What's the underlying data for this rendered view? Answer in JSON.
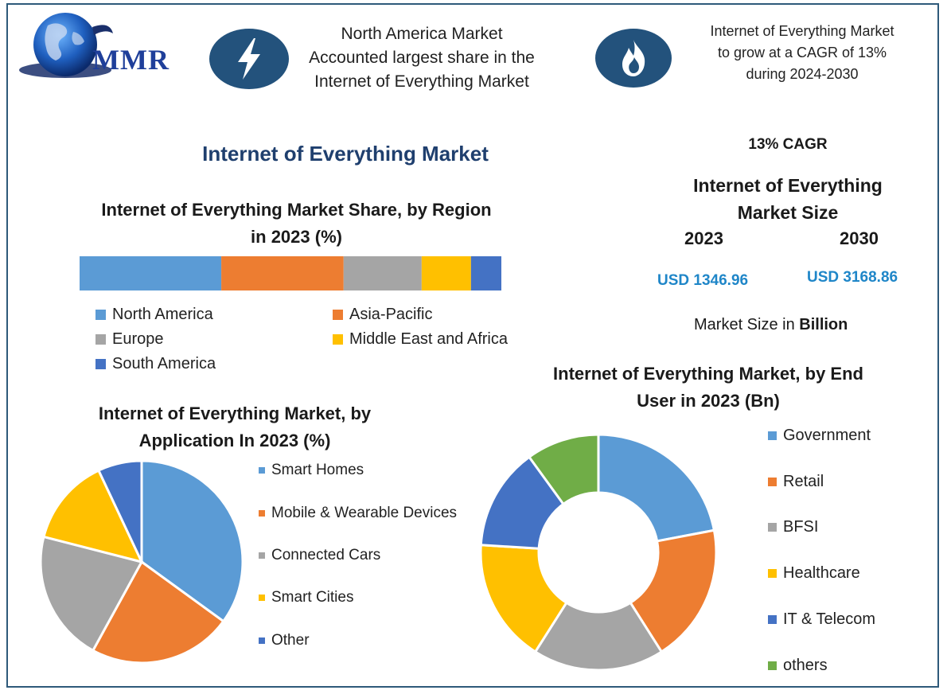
{
  "logo": {
    "text": "MMR"
  },
  "header": {
    "callout1": [
      "North America Market",
      "Accounted largest share in the",
      "Internet of Everything Market"
    ],
    "callout2": [
      "Internet of Everything Market",
      "to grow at a CAGR of 13%",
      "during 2024-2030"
    ],
    "icon1": "lightning-icon",
    "icon2": "flame-icon"
  },
  "main_title": "Internet of Everything Market",
  "cagr_label": "13% CAGR",
  "size_title": [
    "Internet of Everything",
    "Market Size"
  ],
  "year_start": "2023",
  "year_end": "2030",
  "value_start": "USD 1346.96",
  "value_end": "USD 3168.86",
  "size_unit_prefix": "Market Size in ",
  "size_unit_bold": "Billion",
  "colors": {
    "blue": "#5b9bd5",
    "orange": "#ed7d31",
    "gray": "#a5a5a5",
    "yellow": "#ffc000",
    "darkblue": "#4472c4",
    "green": "#70ad47",
    "navy": "#23527c",
    "value": "#1f86c8"
  },
  "chart_data": [
    {
      "type": "bar",
      "stacked": true,
      "orientation": "horizontal",
      "title_lines": [
        "Internet of Everything Market Share, by Region",
        "in 2023 (%)"
      ],
      "legend_position": "bottom",
      "series": [
        {
          "name": "North America",
          "value": 33.6,
          "color": "#5b9bd5"
        },
        {
          "name": "Asia-Pacific",
          "value": 29.0,
          "color": "#ed7d31"
        },
        {
          "name": "Europe",
          "value": 18.5,
          "color": "#a5a5a5"
        },
        {
          "name": "Middle East and Africa",
          "value": 11.7,
          "color": "#ffc000"
        },
        {
          "name": "South America",
          "value": 7.2,
          "color": "#4472c4"
        }
      ]
    },
    {
      "type": "pie",
      "title_lines": [
        "Internet of Everything Market, by",
        "Application In 2023 (%)"
      ],
      "legend_position": "right",
      "categories": [
        "Smart Homes",
        "Mobile & Wearable Devices",
        "Connected Cars",
        "Smart Cities",
        "Other"
      ],
      "values": [
        35,
        23,
        21,
        14,
        7
      ],
      "colors": [
        "#5b9bd5",
        "#ed7d31",
        "#a5a5a5",
        "#ffc000",
        "#4472c4"
      ]
    },
    {
      "type": "pie",
      "donut": true,
      "title_lines": [
        "Internet of Everything Market, by End",
        "User in 2023 (Bn)"
      ],
      "legend_position": "right",
      "categories": [
        "Government",
        "Retail",
        "BFSI",
        "Healthcare",
        "IT & Telecom",
        "others"
      ],
      "values": [
        22,
        19,
        18,
        17,
        14,
        10
      ],
      "colors": [
        "#5b9bd5",
        "#ed7d31",
        "#a5a5a5",
        "#ffc000",
        "#4472c4",
        "#70ad47"
      ]
    }
  ]
}
